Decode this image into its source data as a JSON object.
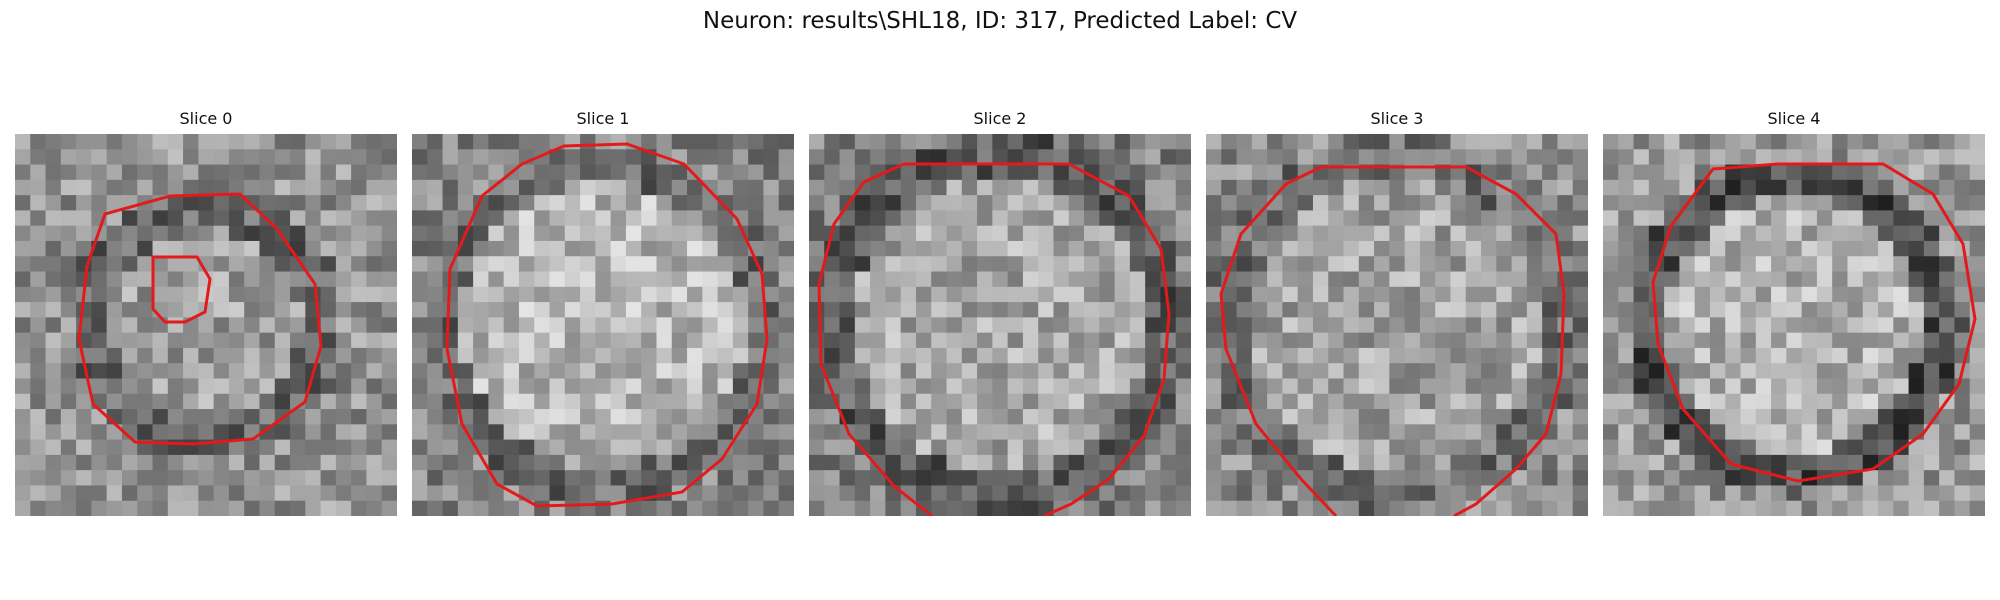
{
  "figure": {
    "title": "Neuron: results\\SHL18, ID: 317, Predicted Label: CV"
  },
  "panels": [
    {
      "title": "Slice 0"
    },
    {
      "title": "Slice 1"
    },
    {
      "title": "Slice 2"
    },
    {
      "title": "Slice 3"
    },
    {
      "title": "Slice 4"
    }
  ],
  "colors": {
    "contour": "#e31a1c",
    "background": "#ffffff"
  }
}
